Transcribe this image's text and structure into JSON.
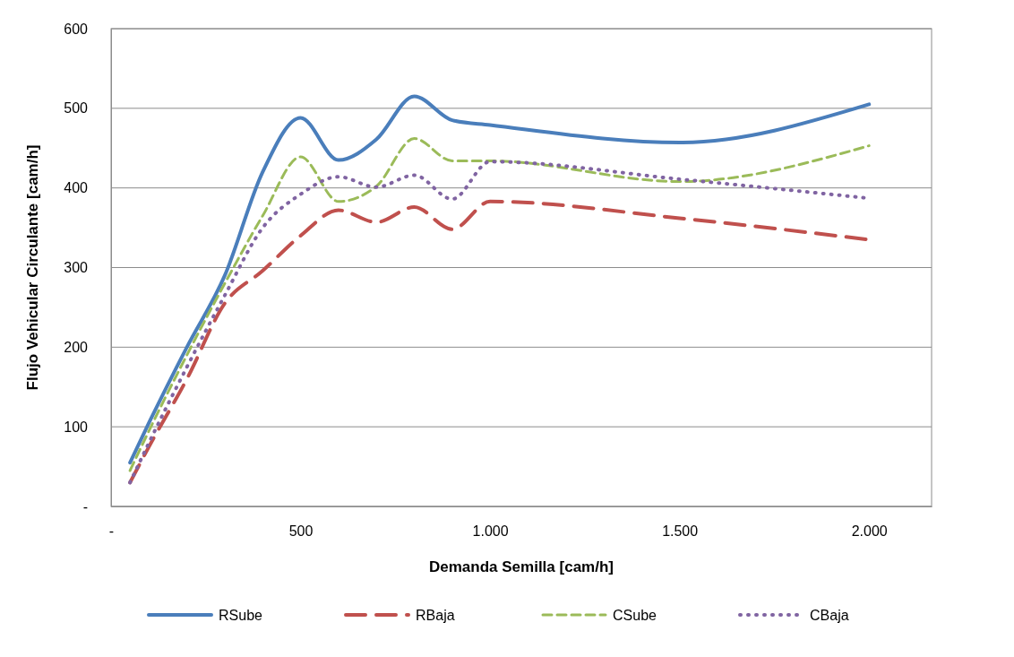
{
  "chart_data": {
    "type": "line",
    "xlabel": "Demanda Semilla [cam/h]",
    "ylabel": "Flujo Vehicular Circulante [cam/h]",
    "x": [
      50,
      100,
      200,
      300,
      400,
      500,
      600,
      700,
      800,
      900,
      1000,
      1500,
      2000
    ],
    "series": [
      {
        "name": "RSube",
        "color": "#4a7ebb",
        "line_style": "solid",
        "values": [
          55,
          105,
          200,
          290,
          420,
          488,
          435,
          461,
          515,
          485,
          479,
          457,
          505
        ]
      },
      {
        "name": "RBaja",
        "color": "#c0504d",
        "line_style": "dashed",
        "values": [
          30,
          75,
          160,
          255,
          296,
          340,
          372,
          357,
          376,
          348,
          383,
          362,
          335
        ]
      },
      {
        "name": "CSube",
        "color": "#9bbb59",
        "line_style": "dashed",
        "values": [
          45,
          95,
          190,
          280,
          365,
          439,
          383,
          402,
          462,
          434,
          434,
          408,
          453
        ]
      },
      {
        "name": "CBaja",
        "color": "#8064a2",
        "line_style": "dotted",
        "values": [
          30,
          80,
          175,
          265,
          350,
          392,
          414,
          401,
          416,
          386,
          433,
          411,
          387
        ]
      }
    ],
    "xlim": [
      0,
      2165
    ],
    "xticks": [
      {
        "value": 0,
        "label": "-"
      },
      {
        "value": 500,
        "label": "500"
      },
      {
        "value": 1000,
        "label": "1.000"
      },
      {
        "value": 1500,
        "label": "1.500"
      },
      {
        "value": 2000,
        "label": "2.000"
      }
    ],
    "ylim": [
      0,
      600
    ],
    "yticks": [
      {
        "value": 0,
        "label": "-"
      },
      100,
      200,
      300,
      400,
      500,
      600
    ],
    "grid": "y",
    "legend": "bottom",
    "marker": "none"
  }
}
